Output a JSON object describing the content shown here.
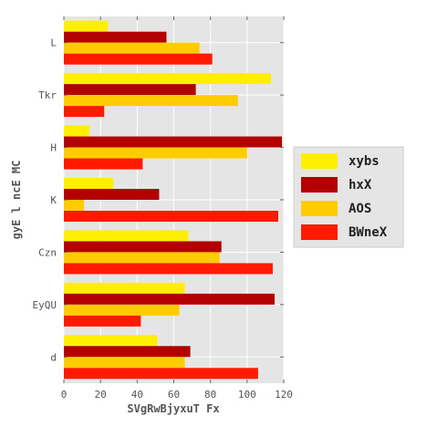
{
  "chart_data": {
    "type": "bar",
    "orientation": "horizontal",
    "categories": [
      "L",
      "Tkr",
      "H",
      "K",
      "Czn",
      "EyQU",
      "d"
    ],
    "series": [
      {
        "name": "xybs",
        "color": "#ffee00",
        "values": [
          24,
          113,
          14,
          27,
          68,
          66,
          51
        ]
      },
      {
        "name": "hxX",
        "color": "#b30000",
        "values": [
          56,
          72,
          119,
          52,
          86,
          115,
          69
        ]
      },
      {
        "name": "AOS",
        "color": "#ffcc00",
        "values": [
          74,
          95,
          100,
          11,
          85,
          63,
          66
        ]
      },
      {
        "name": "BWneX",
        "color": "#ff1a00",
        "values": [
          81,
          22,
          43,
          117,
          114,
          42,
          106
        ]
      }
    ],
    "xlabel": "SVgRwBjyxuT Fx",
    "ylabel": "gyE l  ncE  MC",
    "xlim": [
      0,
      120
    ],
    "xticks": [
      "0",
      "20",
      "40",
      "60",
      "80",
      "100",
      "120"
    ],
    "grid": true,
    "legend_position": "right",
    "background_color": "#e5e5e5",
    "grid_color": "#ffffff"
  }
}
